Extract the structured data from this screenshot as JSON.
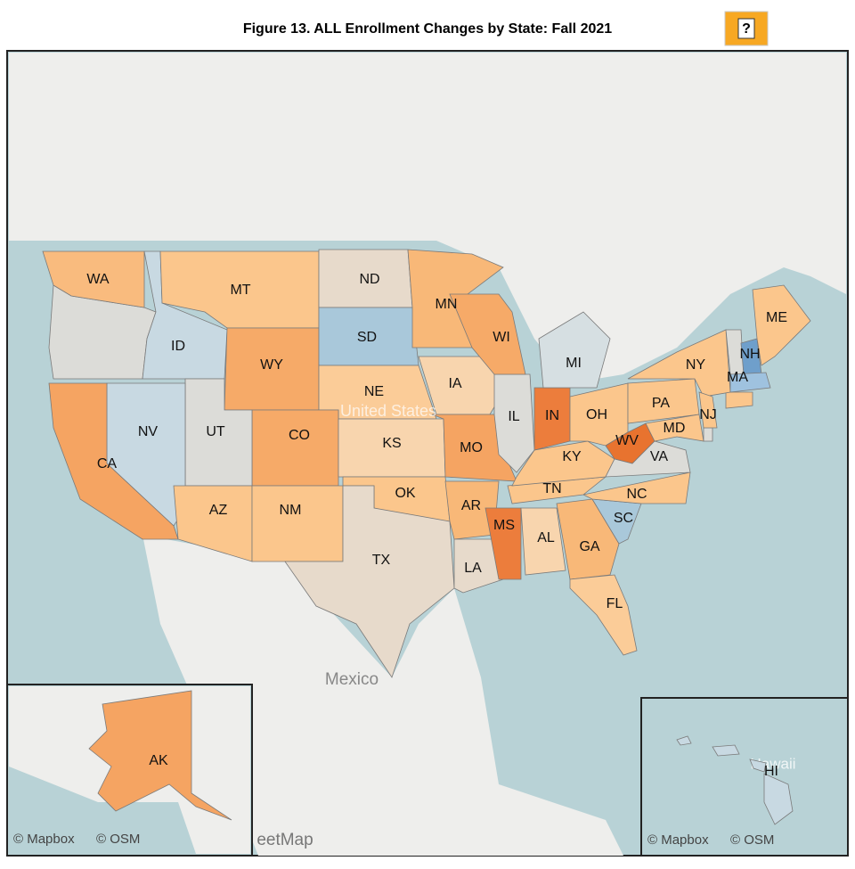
{
  "title": "Figure 13. ALL Enrollment Changes by State: Fall 2021",
  "help_button": "?",
  "map_labels": {
    "country_us": "United States",
    "country_mexico": "Mexico",
    "hawaii": "Hawaii",
    "street_map_fragment": "eetMap"
  },
  "attribution": [
    "© Mapbox",
    "© OSM"
  ],
  "states": [
    {
      "abbr": "WA",
      "color": "#f9bb7e"
    },
    {
      "abbr": "ID",
      "color": "#c8d9e2"
    },
    {
      "abbr": "MT",
      "color": "#fbc68c"
    },
    {
      "abbr": "WY",
      "color": "#f6aa68"
    },
    {
      "abbr": "ND",
      "color": "#e7dacb"
    },
    {
      "abbr": "SD",
      "color": "#a9c8da"
    },
    {
      "abbr": "NE",
      "color": "#fbcc98"
    },
    {
      "abbr": "CO",
      "color": "#f6aa68"
    },
    {
      "abbr": "UT",
      "color": "#dcdcd8"
    },
    {
      "abbr": "NV",
      "color": "#c8d9e2"
    },
    {
      "abbr": "CA",
      "color": "#f5a462"
    },
    {
      "abbr": "AZ",
      "color": "#fbc68c"
    },
    {
      "abbr": "NM",
      "color": "#fbc68c"
    },
    {
      "abbr": "KS",
      "color": "#f8d5ae"
    },
    {
      "abbr": "OK",
      "color": "#fbc68c"
    },
    {
      "abbr": "TX",
      "color": "#e7dacb"
    },
    {
      "abbr": "MN",
      "color": "#f8b878"
    },
    {
      "abbr": "IA",
      "color": "#f8d5ae"
    },
    {
      "abbr": "MO",
      "color": "#f5a462"
    },
    {
      "abbr": "AR",
      "color": "#f8b878"
    },
    {
      "abbr": "LA",
      "color": "#e7dacb"
    },
    {
      "abbr": "MS",
      "color": "#ec7d3c"
    },
    {
      "abbr": "AL",
      "color": "#f8d5ae"
    },
    {
      "abbr": "GA",
      "color": "#f8b878"
    },
    {
      "abbr": "FL",
      "color": "#fbcc98"
    },
    {
      "abbr": "SC",
      "color": "#a9c8da"
    },
    {
      "abbr": "NC",
      "color": "#fbc68c"
    },
    {
      "abbr": "TN",
      "color": "#fbc68c"
    },
    {
      "abbr": "KY",
      "color": "#fbc68c"
    },
    {
      "abbr": "IL",
      "color": "#dcdcd8"
    },
    {
      "abbr": "IN",
      "color": "#ec7d3c"
    },
    {
      "abbr": "OH",
      "color": "#fbc68c"
    },
    {
      "abbr": "MI",
      "color": "#d6dfe2"
    },
    {
      "abbr": "WI",
      "color": "#f6aa68"
    },
    {
      "abbr": "WV",
      "color": "#e8732f"
    },
    {
      "abbr": "VA",
      "color": "#dcdcd8"
    },
    {
      "abbr": "PA",
      "color": "#fbc68c"
    },
    {
      "abbr": "NY",
      "color": "#fbc68c"
    },
    {
      "abbr": "NJ",
      "color": "#fbc68c"
    },
    {
      "abbr": "MD",
      "color": "#fbc68c"
    },
    {
      "abbr": "NH",
      "color": "#6f9fcb"
    },
    {
      "abbr": "MA",
      "color": "#9fc2df"
    },
    {
      "abbr": "ME",
      "color": "#fbc68c"
    },
    {
      "abbr": "AK",
      "color": "#f5a462"
    },
    {
      "abbr": "HI",
      "color": "#c8d9e2"
    }
  ]
}
